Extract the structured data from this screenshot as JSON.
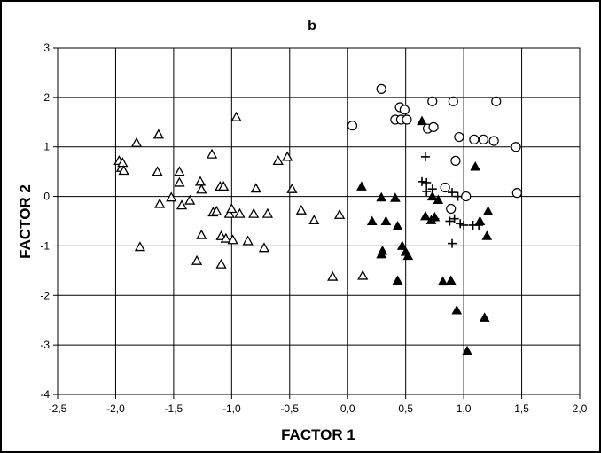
{
  "chart_data": {
    "type": "scatter",
    "title": "b",
    "xlabel": "FACTOR 1",
    "ylabel": "FACTOR 2",
    "xlim": [
      -2.5,
      2.0
    ],
    "ylim": [
      -4,
      3
    ],
    "xticks": [
      -2.5,
      -2.0,
      -1.5,
      -1.0,
      -0.5,
      0.0,
      0.5,
      1.0,
      1.5,
      2.0
    ],
    "yticks": [
      -4,
      -3,
      -2,
      -1,
      0,
      1,
      2,
      3
    ],
    "xtick_labels": [
      "-2,5",
      "-2,0",
      "-1,5",
      "-1,0",
      "-0,5",
      "0,0",
      "0,5",
      "1,0",
      "1,5",
      "2,0"
    ],
    "ytick_labels": [
      "-4",
      "-3",
      "-2",
      "-1",
      "0",
      "1",
      "2",
      "3"
    ],
    "grid": true,
    "series": [
      {
        "marker": "open-triangle",
        "points": [
          [
            -1.97,
            0.72
          ],
          [
            -1.95,
            0.58
          ],
          [
            -1.94,
            0.68
          ],
          [
            -1.93,
            0.52
          ],
          [
            -1.82,
            1.08
          ],
          [
            -1.79,
            -1.02
          ],
          [
            -1.63,
            1.25
          ],
          [
            -1.64,
            0.5
          ],
          [
            -1.62,
            -0.15
          ],
          [
            -1.52,
            -0.02
          ],
          [
            -1.45,
            0.5
          ],
          [
            -1.45,
            0.28
          ],
          [
            -1.43,
            -0.18
          ],
          [
            -1.36,
            -0.08
          ],
          [
            -1.3,
            -1.3
          ],
          [
            -1.27,
            0.3
          ],
          [
            -1.26,
            0.14
          ],
          [
            -1.26,
            -0.78
          ],
          [
            -1.17,
            0.85
          ],
          [
            -1.16,
            -0.32
          ],
          [
            -1.13,
            -0.3
          ],
          [
            -1.1,
            0.2
          ],
          [
            -1.09,
            -0.8
          ],
          [
            -1.09,
            -1.37
          ],
          [
            -1.07,
            0.2
          ],
          [
            -1.05,
            -0.85
          ],
          [
            -1.02,
            -0.35
          ],
          [
            -1.0,
            -0.25
          ],
          [
            -0.99,
            -0.88
          ],
          [
            -0.96,
            1.6
          ],
          [
            -0.93,
            -0.35
          ],
          [
            -0.86,
            -0.9
          ],
          [
            -0.81,
            -0.35
          ],
          [
            -0.79,
            0.16
          ],
          [
            -0.72,
            -1.04
          ],
          [
            -0.69,
            -0.35
          ],
          [
            -0.6,
            0.72
          ],
          [
            -0.52,
            0.8
          ],
          [
            -0.48,
            0.15
          ],
          [
            -0.4,
            -0.28
          ],
          [
            -0.29,
            -0.48
          ],
          [
            -0.13,
            -1.62
          ],
          [
            -0.07,
            -0.37
          ],
          [
            0.13,
            -1.6
          ]
        ]
      },
      {
        "marker": "filled-triangle",
        "points": [
          [
            0.12,
            0.2
          ],
          [
            0.21,
            -0.5
          ],
          [
            0.29,
            -0.02
          ],
          [
            0.3,
            -1.1
          ],
          [
            0.29,
            -1.17
          ],
          [
            0.33,
            -0.5
          ],
          [
            0.41,
            -0.03
          ],
          [
            0.43,
            -0.6
          ],
          [
            0.43,
            -1.7
          ],
          [
            0.47,
            -1.0
          ],
          [
            0.5,
            -1.12
          ],
          [
            0.52,
            -1.2
          ],
          [
            0.64,
            1.52
          ],
          [
            0.67,
            -0.4
          ],
          [
            0.72,
            -0.48
          ],
          [
            0.73,
            0.0
          ],
          [
            0.75,
            -0.42
          ],
          [
            0.78,
            -0.07
          ],
          [
            0.82,
            -1.72
          ],
          [
            0.89,
            -1.7
          ],
          [
            0.94,
            -2.3
          ],
          [
            1.03,
            -3.12
          ],
          [
            1.1,
            0.6
          ],
          [
            1.14,
            -0.5
          ],
          [
            1.18,
            -2.45
          ],
          [
            1.2,
            -0.8
          ],
          [
            1.21,
            -0.3
          ]
        ]
      },
      {
        "marker": "plus",
        "points": [
          [
            0.64,
            0.3
          ],
          [
            0.67,
            0.8
          ],
          [
            0.68,
            0.28
          ],
          [
            0.68,
            0.1
          ],
          [
            0.73,
            0.15
          ],
          [
            0.75,
            -0.45
          ],
          [
            0.88,
            -0.5
          ],
          [
            0.9,
            0.08
          ],
          [
            0.9,
            -0.95
          ],
          [
            0.92,
            -0.45
          ],
          [
            0.95,
            0.0
          ],
          [
            0.97,
            -0.55
          ],
          [
            1.0,
            -0.58
          ],
          [
            1.08,
            -0.58
          ],
          [
            1.13,
            -0.58
          ]
        ]
      },
      {
        "marker": "open-circle",
        "points": [
          [
            0.04,
            1.43
          ],
          [
            0.29,
            2.17
          ],
          [
            0.41,
            1.55
          ],
          [
            0.45,
            1.8
          ],
          [
            0.46,
            1.55
          ],
          [
            0.49,
            1.75
          ],
          [
            0.51,
            1.55
          ],
          [
            0.69,
            1.37
          ],
          [
            0.73,
            1.92
          ],
          [
            0.74,
            1.4
          ],
          [
            0.84,
            0.18
          ],
          [
            0.89,
            -0.25
          ],
          [
            0.91,
            1.92
          ],
          [
            0.93,
            0.72
          ],
          [
            0.96,
            1.2
          ],
          [
            1.02,
            0.0
          ],
          [
            1.09,
            1.15
          ],
          [
            1.17,
            1.15
          ],
          [
            1.26,
            1.12
          ],
          [
            1.28,
            1.92
          ],
          [
            1.45,
            1.0
          ],
          [
            1.46,
            0.07
          ]
        ]
      }
    ]
  }
}
